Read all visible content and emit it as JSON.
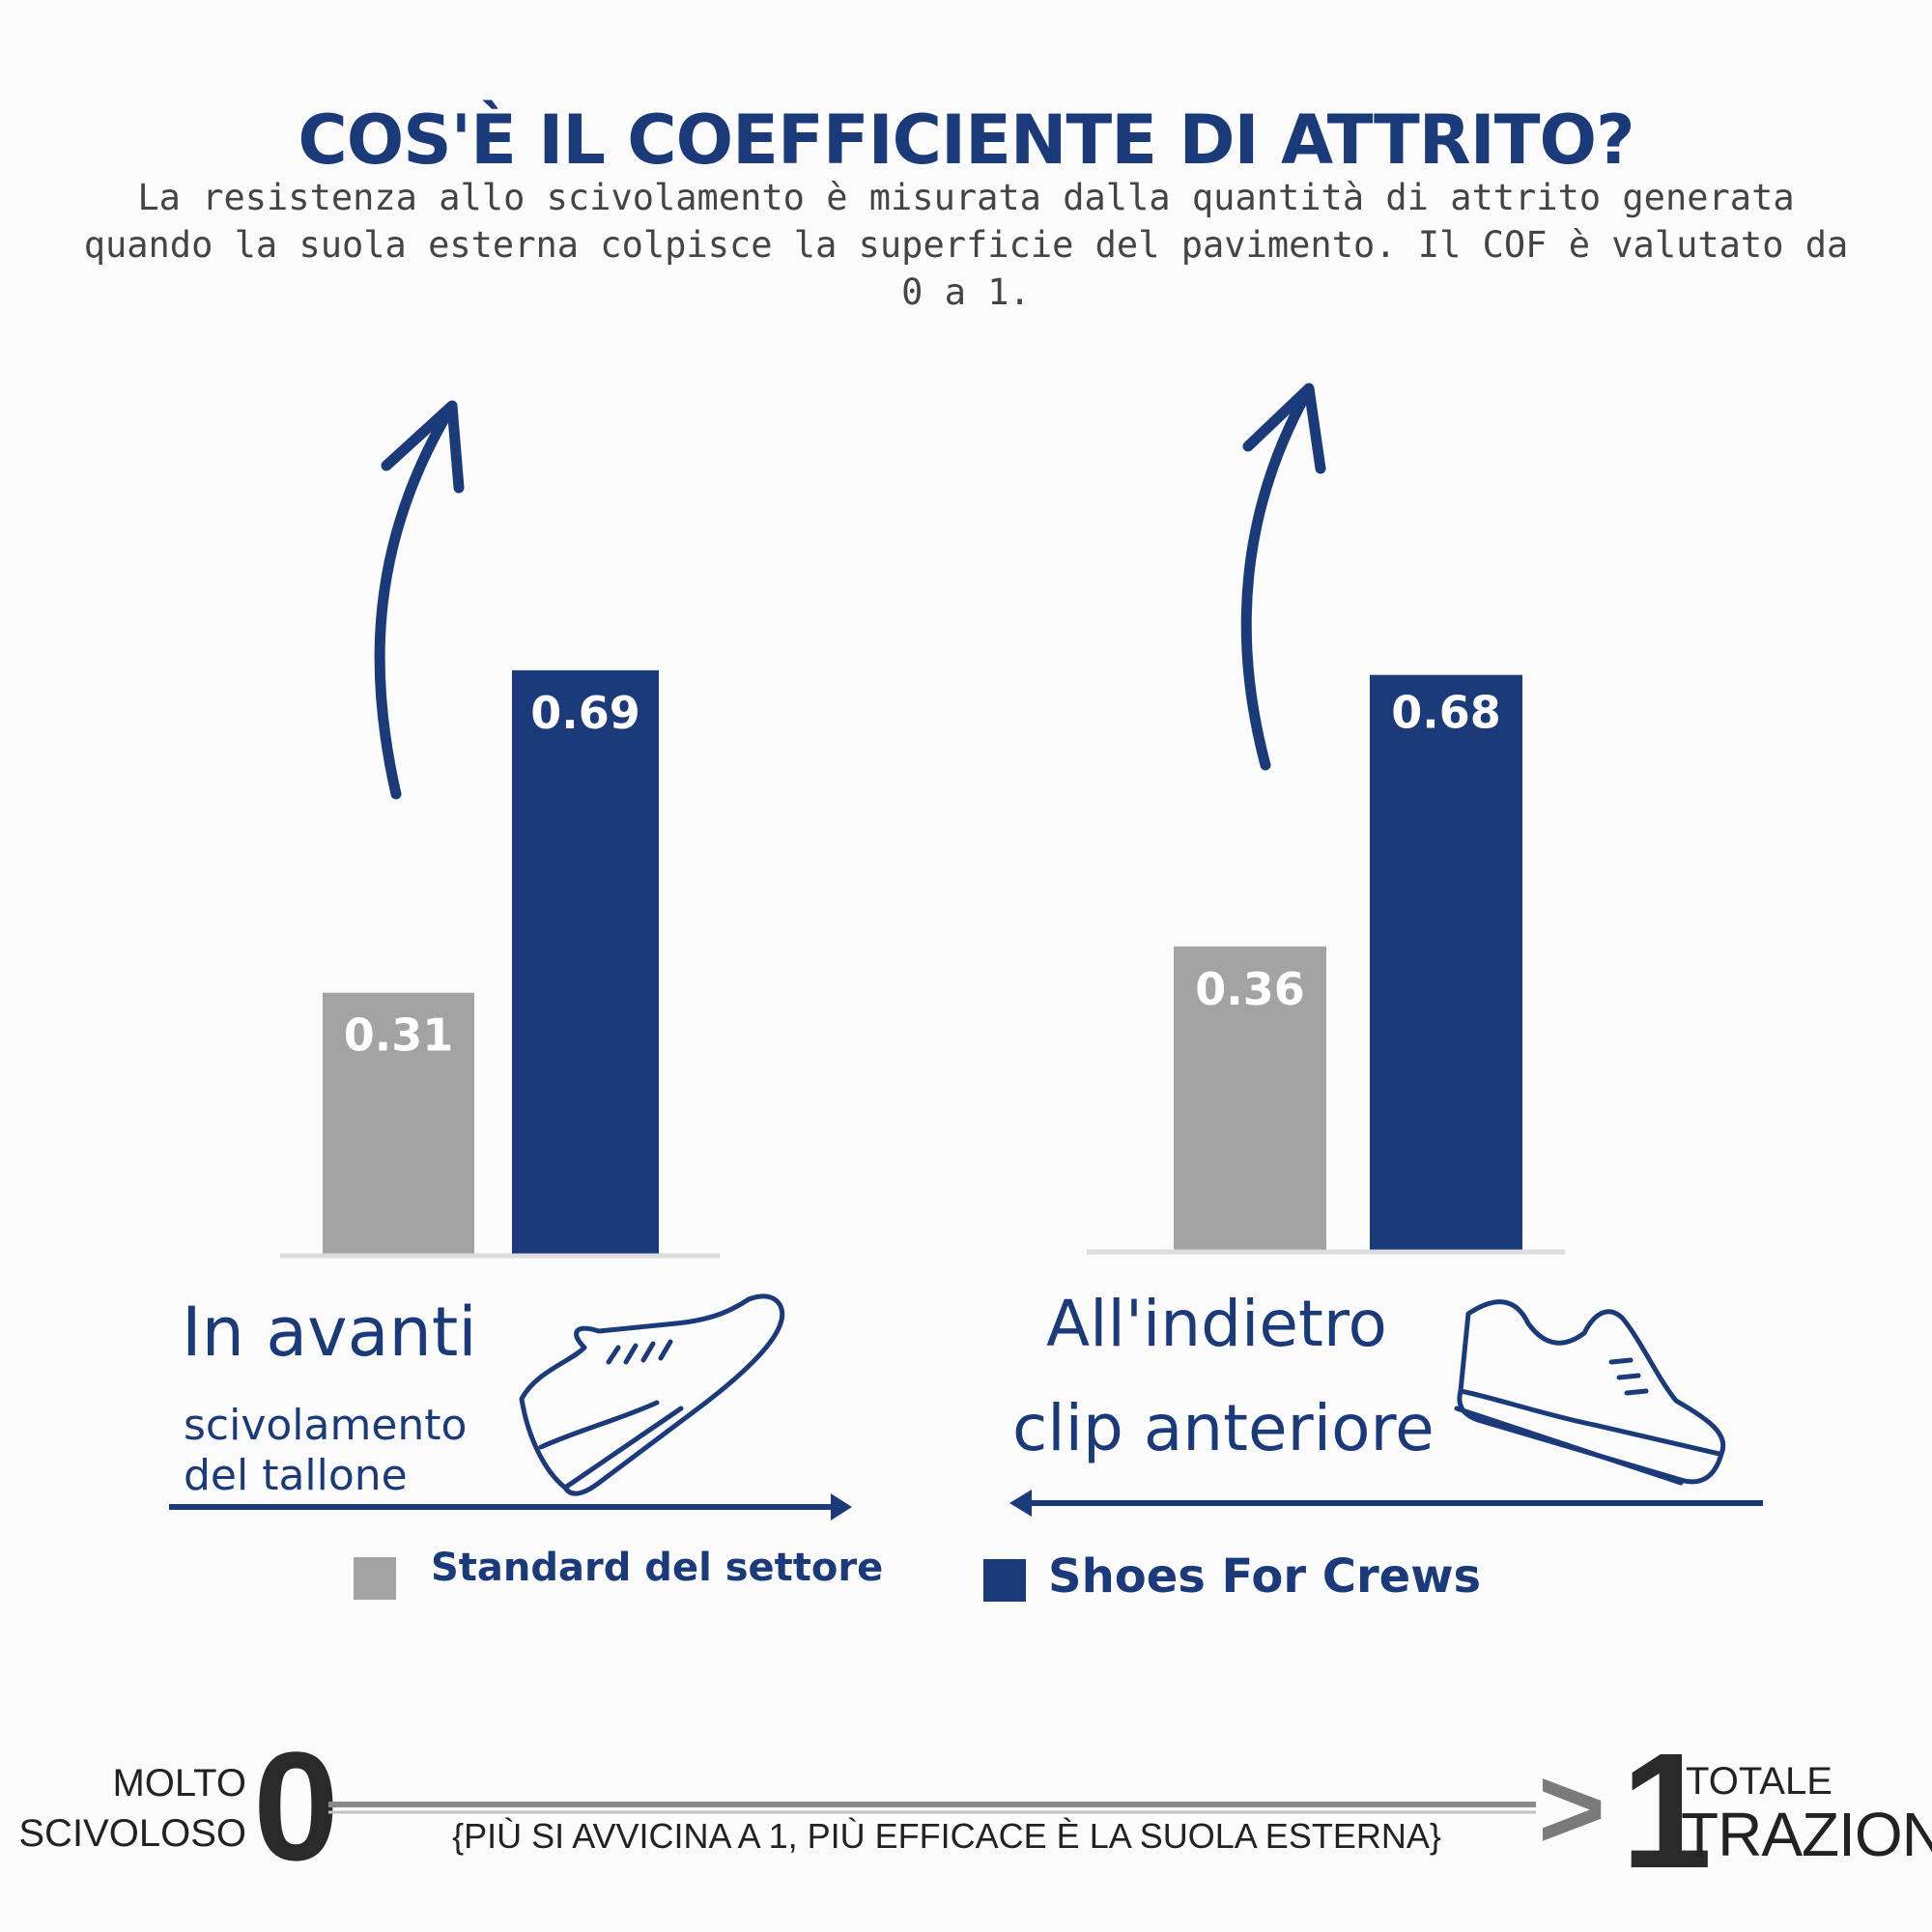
{
  "header": {
    "title": "COS'È IL COEFFICIENTE DI ATTRITO?",
    "subtitle": "La resistenza allo scivolamento è misurata dalla quantità di attrito generata quando la suola esterna colpisce la superficie del pavimento. Il COF è valutato da 0 a 1."
  },
  "chart_data": {
    "type": "bar",
    "categories": [
      "In avanti",
      "All'indietro"
    ],
    "series": [
      {
        "name": "Standard del settore",
        "values": [
          0.31,
          0.36
        ],
        "color": "#a3a3a3"
      },
      {
        "name": "Shoes For Crews",
        "values": [
          0.69,
          0.68
        ],
        "color": "#1b3a7a"
      }
    ],
    "data_labels": [
      [
        "0.31",
        "0.69"
      ],
      [
        "0.36",
        "0.68"
      ]
    ],
    "ylim": [
      0,
      1
    ],
    "grid": false,
    "legend_position": "bottom"
  },
  "groups": [
    {
      "title": "In avanti",
      "subtitle_line1": "scivolamento",
      "subtitle_line2": "del tallone",
      "arrow_direction": "right",
      "icon": "sneaker-icon"
    },
    {
      "title": "All'indietro",
      "subtitle_line1": "clip anteriore",
      "arrow_direction": "left",
      "icon": "sneaker-icon"
    }
  ],
  "legend": [
    {
      "label": "Standard del settore",
      "color": "#a3a3a3"
    },
    {
      "label": "Shoes For Crews",
      "color": "#1b3a7a"
    }
  ],
  "scale": {
    "left_line1": "MOLTO",
    "left_line2": "SCIVOLOSO",
    "zero": "0",
    "one": "1",
    "note": "{PIÙ SI AVVICINA A 1, PIÙ EFFICACE È LA SUOLA ESTERNA}",
    "right_line1": "TOTALE",
    "right_line2": "TRAZIONE",
    "gt": ">"
  }
}
